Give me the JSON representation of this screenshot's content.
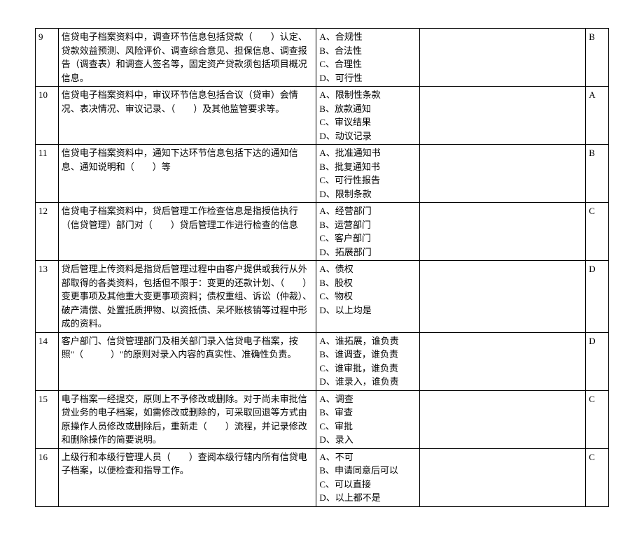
{
  "rows": [
    {
      "num": "9",
      "question": "信贷电子档案资料中，调查环节信息包括贷款（　　）认定、贷款效益预测、风险评价、调查综合意见、担保信息、调查报告（调查表）和调查人签名等，固定资产贷款须包括项目概况信息。",
      "options": "A、合规性\nB、合法性\nC、合理性\nD、可行性",
      "blank1": "",
      "answer": "B"
    },
    {
      "num": "10",
      "question": "信贷电子档案资料中，审议环节信息包括合议（贷审）会情况、表决情况、审议记录、（　　）及其他监管要求等。",
      "options": "A、限制性条款\nB、放款通知\nC、审议结果\nD、动议记录",
      "blank1": "",
      "answer": "A"
    },
    {
      "num": "11",
      "question": "信贷电子档案资料中，通知下达环节信息包括下达的通知信息、通知说明和（　　）等",
      "options": "A、批准通知书\nB、批复通知书\nC、可行性报告\nD、限制条款",
      "blank1": "",
      "answer": "B"
    },
    {
      "num": "12",
      "question": "信贷电子档案资料中，贷后管理工作检查信息是指授信执行（信贷管理）部门对（　　）贷后管理工作进行检查的信息",
      "options": "A、经营部门\nB、运营部门\nC、客户部门\nD、拓展部门",
      "blank1": "",
      "answer": "C"
    },
    {
      "num": "13",
      "question": "贷后管理上传资料是指贷后管理过程中由客户提供或我行从外部取得的各类资料，包括但不限于：变更的还款计划、（　　）变更事项及其他重大变更事项资料；债权重组、诉讼（仲裁）、破产清偿、处置抵质押物、以资抵债、呆坏账核销等过程中形成的资料。",
      "options": "A、债权\nB、股权\nC、物权\nD、以上均是",
      "blank1": "",
      "answer": "D"
    },
    {
      "num": "14",
      "question": "客户部门、信贷管理部门及相关部门录入信贷电子档案，按照\"（　　　）\"的原则对录入内容的真实性、准确性负责。",
      "options": "A、谁拓展，谁负责\nB、谁调查，谁负责\nC、谁审批，谁负责\nD、谁录入，谁负责",
      "blank1": "",
      "answer": "D"
    },
    {
      "num": "15",
      "question": "电子档案一经提交，原则上不予修改或删除。对于尚未审批信贷业务的电子档案，如需修改或删除的，可采取回退等方式由原操作人员修改或删除后，重新走（　　）流程，并记录修改和删除操作的简要说明。",
      "options": "A、调查\nB、审查\nC、审批\nD、录入",
      "blank1": "",
      "answer": "C"
    },
    {
      "num": "16",
      "question": "上级行和本级行管理人员（　　）查阅本级行辖内所有信贷电子档案，以便检查和指导工作。",
      "options": "A、不可\nB、申请同意后可以\nC、可以直接\nD、以上都不是",
      "blank1": "",
      "answer": "C"
    }
  ]
}
